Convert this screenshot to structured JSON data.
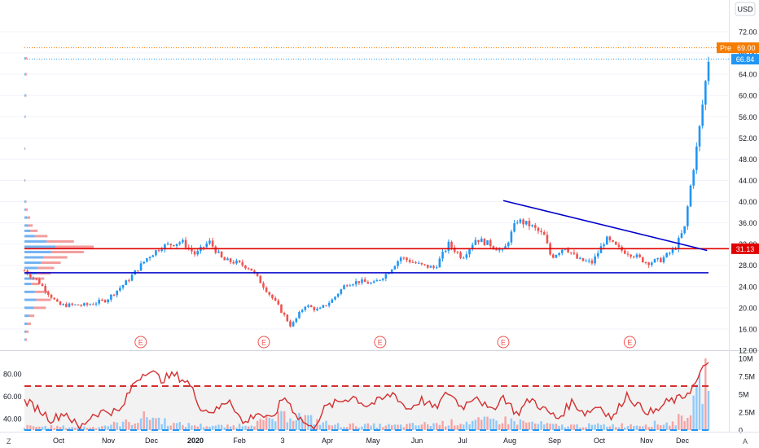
{
  "colors": {
    "up": "#26a69a",
    "down": "#ef5350",
    "up_candle": "#2196f3",
    "down_candle": "#ef5350",
    "support": "#0000cc",
    "resistance": "#e00000",
    "trend": "#0000cc",
    "premarket": "#f57c00",
    "last": "#2196f3",
    "rsi": "#d32f2f",
    "grid": "#f0f3fa",
    "axis_text": "#131722"
  },
  "header": {
    "currency": "USD"
  },
  "badges": {
    "z": "Z",
    "a": "A"
  },
  "chart_data": [
    {
      "type": "candlestick",
      "title": "",
      "price_ticks": [
        "72.00",
        "68.00",
        "64.00",
        "60.00",
        "56.00",
        "52.00",
        "48.00",
        "44.00",
        "40.00",
        "36.00",
        "32.00",
        "28.00",
        "24.00",
        "20.00",
        "16.00",
        "12.00"
      ],
      "ylim": [
        12,
        74
      ],
      "x_labels": [
        "Oct",
        "Nov",
        "Dec",
        "2020",
        "Feb",
        "3",
        "Apr",
        "May",
        "Jun",
        "Jul",
        "Aug",
        "Sep",
        "Oct",
        "Nov",
        "Dec"
      ],
      "price_labels": {
        "premarket": {
          "text": "Pre",
          "value": "69.00",
          "y": 69.0
        },
        "last": {
          "value": "66.84",
          "y": 66.84
        },
        "level": {
          "value": "31.13",
          "y": 31.13
        }
      },
      "levels": {
        "resistance": 31.13,
        "support": 26.6
      },
      "trendline": {
        "from": {
          "x": 0.7,
          "y": 40.2
        },
        "to": {
          "x": 0.998,
          "y": 30.8
        }
      },
      "earnings_markers": {
        "label": "E",
        "at": [
          0.17,
          0.35,
          0.52,
          0.7,
          0.885
        ]
      },
      "waypoints": [
        [
          0.0,
          27.0
        ],
        [
          0.02,
          25.0
        ],
        [
          0.05,
          20.5
        ],
        [
          0.09,
          20.5
        ],
        [
          0.12,
          21.5
        ],
        [
          0.15,
          25.0
        ],
        [
          0.18,
          29.5
        ],
        [
          0.2,
          31.5
        ],
        [
          0.23,
          32.5
        ],
        [
          0.25,
          30.0
        ],
        [
          0.27,
          32.5
        ],
        [
          0.29,
          29.0
        ],
        [
          0.31,
          28.5
        ],
        [
          0.33,
          27.5
        ],
        [
          0.35,
          24.0
        ],
        [
          0.37,
          20.5
        ],
        [
          0.39,
          16.5
        ],
        [
          0.41,
          20.5
        ],
        [
          0.43,
          19.5
        ],
        [
          0.45,
          21.5
        ],
        [
          0.47,
          24.5
        ],
        [
          0.49,
          25.0
        ],
        [
          0.51,
          24.5
        ],
        [
          0.53,
          26.5
        ],
        [
          0.55,
          29.5
        ],
        [
          0.58,
          28.0
        ],
        [
          0.6,
          27.5
        ],
        [
          0.62,
          32.0
        ],
        [
          0.64,
          29.5
        ],
        [
          0.66,
          33.0
        ],
        [
          0.68,
          32.0
        ],
        [
          0.7,
          30.5
        ],
        [
          0.72,
          36.5
        ],
        [
          0.74,
          35.5
        ],
        [
          0.76,
          33.5
        ],
        [
          0.77,
          29.5
        ],
        [
          0.79,
          31.5
        ],
        [
          0.81,
          29.0
        ],
        [
          0.83,
          28.5
        ],
        [
          0.85,
          33.0
        ],
        [
          0.87,
          31.0
        ],
        [
          0.89,
          30.0
        ],
        [
          0.91,
          28.5
        ],
        [
          0.93,
          29.0
        ],
        [
          0.95,
          31.0
        ],
        [
          0.965,
          35.0
        ],
        [
          0.975,
          44.0
        ],
        [
          0.985,
          52.0
        ],
        [
          0.993,
          60.0
        ],
        [
          1.0,
          66.84
        ]
      ],
      "volume_profile": {
        "bins": [
          [
            14,
            1.5
          ],
          [
            15.5,
            2.5
          ],
          [
            17,
            4
          ],
          [
            18.5,
            6
          ],
          [
            20,
            13
          ],
          [
            21.5,
            16
          ],
          [
            23,
            14
          ],
          [
            24.5,
            9
          ],
          [
            25.5,
            12
          ],
          [
            26.5,
            16
          ],
          [
            27.5,
            18
          ],
          [
            28.5,
            22
          ],
          [
            29.5,
            26
          ],
          [
            30.5,
            36
          ],
          [
            31.5,
            42
          ],
          [
            32.5,
            30
          ],
          [
            33.5,
            14
          ],
          [
            34.5,
            8
          ],
          [
            35.5,
            5
          ],
          [
            37,
            3.5
          ],
          [
            38.5,
            2
          ],
          [
            40,
            1.2
          ],
          [
            44,
            0.6
          ],
          [
            50,
            0.6
          ],
          [
            56,
            0.8
          ],
          [
            60,
            1.2
          ],
          [
            64,
            1.4
          ],
          [
            67,
            1.6
          ]
        ]
      },
      "xlabel": "",
      "ylabel": ""
    },
    {
      "type": "line+bar",
      "title": "",
      "rsi_ticks": [
        "80.00",
        "60.00",
        "40.00"
      ],
      "rsi_ylim": [
        30,
        95
      ],
      "volume_ticks": [
        "10M",
        "7.5M",
        "5M",
        "2.5M",
        "0"
      ],
      "volume_ylim": [
        0,
        10
      ],
      "overbought": 69,
      "oversold": 30,
      "rsi_waypoints": [
        [
          0.0,
          56
        ],
        [
          0.02,
          49
        ],
        [
          0.04,
          39
        ],
        [
          0.06,
          46
        ],
        [
          0.08,
          31
        ],
        [
          0.1,
          44
        ],
        [
          0.12,
          47
        ],
        [
          0.14,
          46
        ],
        [
          0.16,
          72
        ],
        [
          0.18,
          84
        ],
        [
          0.2,
          75
        ],
        [
          0.22,
          79
        ],
        [
          0.24,
          72
        ],
        [
          0.26,
          48
        ],
        [
          0.28,
          47
        ],
        [
          0.3,
          58
        ],
        [
          0.32,
          35
        ],
        [
          0.34,
          46
        ],
        [
          0.36,
          38
        ],
        [
          0.38,
          60
        ],
        [
          0.4,
          42
        ],
        [
          0.42,
          31
        ],
        [
          0.44,
          50
        ],
        [
          0.46,
          55
        ],
        [
          0.48,
          60
        ],
        [
          0.5,
          52
        ],
        [
          0.52,
          56
        ],
        [
          0.54,
          63
        ],
        [
          0.56,
          48
        ],
        [
          0.58,
          57
        ],
        [
          0.6,
          49
        ],
        [
          0.62,
          64
        ],
        [
          0.64,
          50
        ],
        [
          0.66,
          62
        ],
        [
          0.68,
          46
        ],
        [
          0.7,
          60
        ],
        [
          0.72,
          44
        ],
        [
          0.74,
          58
        ],
        [
          0.76,
          48
        ],
        [
          0.78,
          40
        ],
        [
          0.8,
          55
        ],
        [
          0.82,
          45
        ],
        [
          0.84,
          52
        ],
        [
          0.86,
          40
        ],
        [
          0.88,
          62
        ],
        [
          0.9,
          50
        ],
        [
          0.92,
          45
        ],
        [
          0.94,
          55
        ],
        [
          0.96,
          58
        ],
        [
          0.98,
          70
        ],
        [
          1.0,
          93
        ]
      ],
      "volume_waypoints": [
        [
          0.0,
          0.5
        ],
        [
          0.1,
          0.4
        ],
        [
          0.16,
          1.2
        ],
        [
          0.18,
          2.0
        ],
        [
          0.22,
          0.8
        ],
        [
          0.3,
          0.5
        ],
        [
          0.35,
          1.2
        ],
        [
          0.39,
          2.2
        ],
        [
          0.45,
          0.7
        ],
        [
          0.55,
          0.6
        ],
        [
          0.62,
          1.0
        ],
        [
          0.7,
          1.4
        ],
        [
          0.78,
          0.6
        ],
        [
          0.88,
          0.7
        ],
        [
          0.95,
          1.0
        ],
        [
          0.98,
          3.5
        ],
        [
          1.0,
          9.5
        ]
      ],
      "xlabel": "",
      "ylabel": ""
    }
  ]
}
